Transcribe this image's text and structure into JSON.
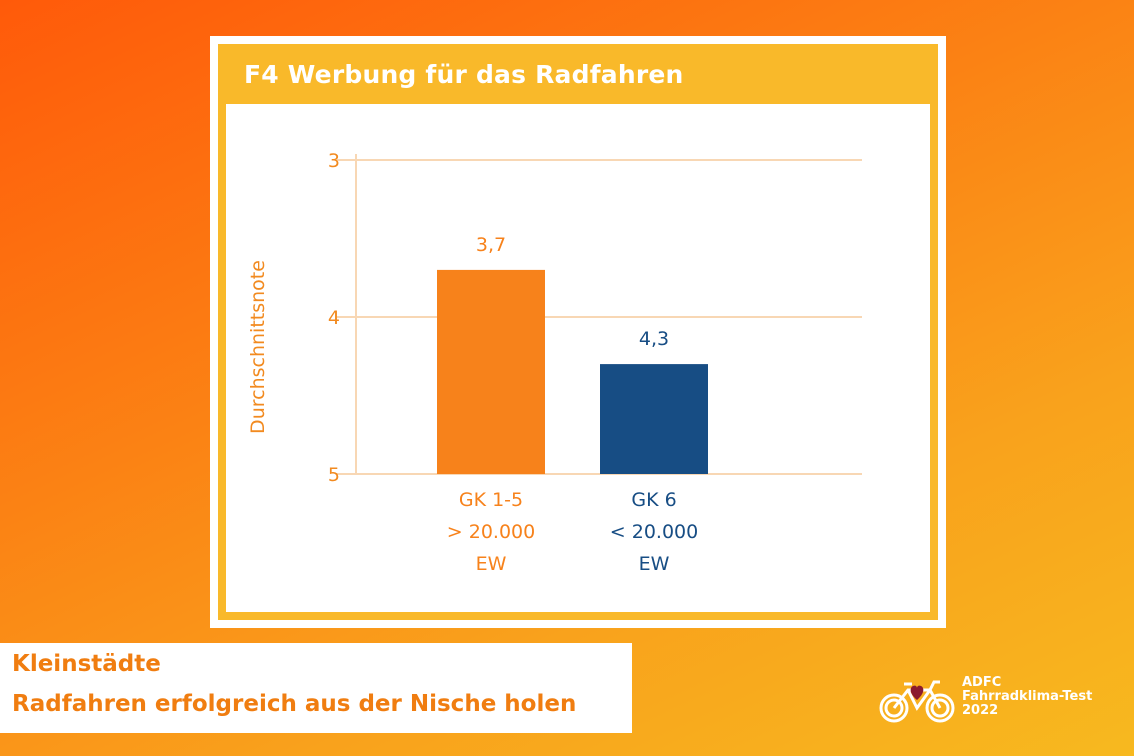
{
  "card": {
    "title": "F4 Werbung für das Radfahren"
  },
  "chart_data": {
    "type": "bar",
    "title": "F4 Werbung für das Radfahren",
    "ylabel": "Durchschnittsnote",
    "ylim": [
      5,
      3
    ],
    "yticks": [
      "3",
      "4",
      "5"
    ],
    "ytick_values": [
      3,
      4,
      5
    ],
    "grid": true,
    "categories": [
      [
        "GK 1-5",
        "> 20.000",
        "EW"
      ],
      [
        "GK 6",
        "< 20.000",
        "EW"
      ]
    ],
    "values": [
      3.7,
      4.3
    ],
    "value_labels": [
      "3,7",
      "4,3"
    ],
    "colors": [
      "#f7821b",
      "#174d84"
    ],
    "grid_color": "#f8d7b4",
    "axis_label_color": "#f28a1f"
  },
  "footer": {
    "line1": "Kleinstädte",
    "line2": "Radfahren erfolgreich aus der Nische holen"
  },
  "brand": {
    "line1": "ADFC",
    "line2": "Fahrradklima-Test",
    "line3": "2022",
    "icon": "bicycle-heart-icon"
  }
}
